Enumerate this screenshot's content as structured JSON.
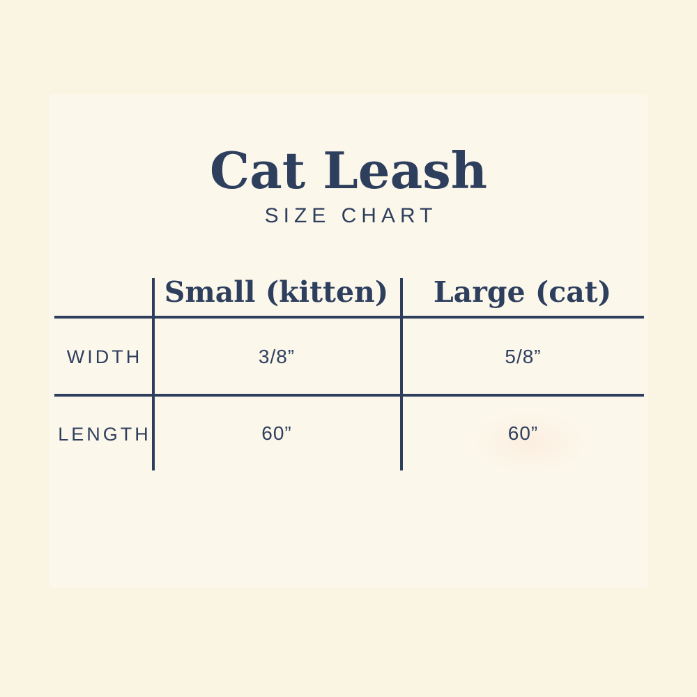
{
  "page": {
    "background_color": "#faf4e2",
    "card_color": "#fcf7eb",
    "accent_color": "#2e3f5e"
  },
  "header": {
    "title": "Cat Leash",
    "subtitle": "SIZE CHART"
  },
  "table": {
    "columns": [
      "Small (kitten)",
      "Large (cat)"
    ],
    "rows": [
      {
        "label": "WIDTH",
        "values": [
          "3/8”",
          "5/8”"
        ]
      },
      {
        "label": "LENGTH",
        "values": [
          "60”",
          "60”"
        ]
      }
    ]
  },
  "chart_data": {
    "type": "table",
    "title": "Cat Leash",
    "subtitle": "SIZE CHART",
    "columns": [
      "Small (kitten)",
      "Large (cat)"
    ],
    "rows": [
      {
        "label": "WIDTH",
        "Small (kitten)": "3/8”",
        "Large (cat)": "5/8”"
      },
      {
        "label": "LENGTH",
        "Small (kitten)": "60”",
        "Large (cat)": "60”"
      }
    ]
  }
}
